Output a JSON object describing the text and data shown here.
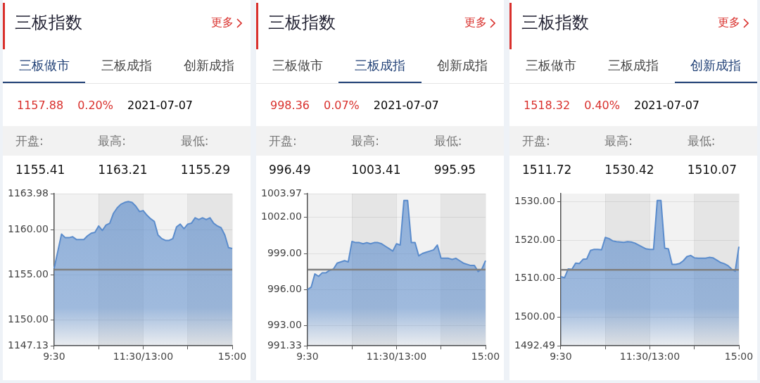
{
  "chart_data": [
    {
      "type": "area",
      "title": "三板指数",
      "annotations": [
        "更多",
        "三板做市",
        "三板成指",
        "创新成指",
        "1157.88",
        "0.20%",
        "2021-07-07",
        "开盘:",
        "最高:",
        "最低:",
        "1155.41",
        "1163.21",
        "1155.29"
      ],
      "categories": [
        "9:30",
        null,
        null,
        null,
        null,
        null,
        null,
        null,
        null,
        null,
        null,
        null,
        null,
        null,
        null,
        null,
        null,
        null,
        null,
        null,
        null,
        null,
        null,
        null,
        "11:30/13:00",
        null,
        null,
        null,
        null,
        null,
        null,
        null,
        null,
        null,
        null,
        null,
        null,
        null,
        null,
        null,
        null,
        null,
        null,
        null,
        null,
        null,
        null,
        null,
        "15:00"
      ],
      "ylim": [
        1147.13,
        1163.98
      ],
      "yticks": [
        1147.13,
        {
          "value": 1150,
          "label": "1150.00"
        },
        {
          "value": 1155,
          "label": "1155.00"
        },
        {
          "value": 1160,
          "label": "1160.00"
        },
        1163.98
      ],
      "grid": true,
      "ref_lines": [
        {
          "axis": "y",
          "value": 1155.57,
          "color": "#808080"
        }
      ],
      "series": [
        {
          "color": "#5b8ccc",
          "values": [
            1155.7,
            1157.6,
            1159.5,
            1159.1,
            1159.1,
            1159.2,
            1158.9,
            1158.9,
            1158.9,
            1159.3,
            1159.6,
            1159.7,
            1160.4,
            1159.9,
            1160.5,
            1160.7,
            1161.8,
            1162.4,
            1162.8,
            1163.0,
            1163.1,
            1163.0,
            1162.6,
            1162.0,
            1162.1,
            1161.6,
            1161.2,
            1160.9,
            1159.4,
            1159.0,
            1158.8,
            1158.8,
            1159.0,
            1160.3,
            1160.6,
            1160.1,
            1160.6,
            1160.7,
            1161.3,
            1161.1,
            1161.3,
            1161.1,
            1161.3,
            1160.7,
            1160.4,
            1160.2,
            1159.4,
            1158.0,
            1157.9
          ]
        }
      ]
    },
    {
      "type": "area",
      "title": "三板指数",
      "annotations": [
        "更多",
        "三板做市",
        "三板成指",
        "创新成指",
        "998.36",
        "0.07%",
        "2021-07-07",
        "开盘:",
        "最高:",
        "最低:",
        "996.49",
        "1003.41",
        "995.95"
      ],
      "categories": [
        "9:30",
        null,
        null,
        null,
        null,
        null,
        null,
        null,
        null,
        null,
        null,
        null,
        null,
        null,
        null,
        null,
        null,
        null,
        null,
        null,
        null,
        null,
        null,
        null,
        "11:30/13:00",
        null,
        null,
        null,
        null,
        null,
        null,
        null,
        null,
        null,
        null,
        null,
        null,
        null,
        null,
        null,
        null,
        null,
        null,
        null,
        null,
        null,
        null,
        null,
        "15:00"
      ],
      "ylim": [
        991.33,
        1003.97
      ],
      "yticks": [
        991.33,
        {
          "value": 993,
          "label": "993.00"
        },
        {
          "value": 996,
          "label": "996.00"
        },
        {
          "value": 999,
          "label": "999.00"
        },
        {
          "value": 1002,
          "label": "1002.00"
        },
        1003.97
      ],
      "grid": true,
      "ref_lines": [
        {
          "axis": "y",
          "value": 997.66,
          "color": "#808080"
        }
      ],
      "series": [
        {
          "color": "#5b8ccc",
          "values": [
            996.0,
            996.2,
            997.3,
            997.1,
            997.4,
            997.4,
            997.6,
            997.7,
            998.2,
            998.3,
            998.4,
            998.3,
            1000.0,
            999.9,
            999.9,
            999.8,
            999.9,
            999.8,
            999.9,
            999.9,
            999.8,
            999.6,
            999.4,
            999.2,
            999.8,
            999.7,
            1003.4,
            1003.4,
            999.9,
            999.9,
            998.8,
            999.0,
            999.1,
            999.2,
            999.3,
            999.7,
            998.6,
            998.6,
            998.6,
            998.5,
            998.6,
            998.4,
            998.2,
            998.1,
            998.0,
            998.0,
            997.5,
            997.7,
            998.4
          ]
        }
      ]
    },
    {
      "type": "area",
      "title": "三板指数",
      "annotations": [
        "更多",
        "三板做市",
        "三板成指",
        "创新成指",
        "1518.32",
        "0.40%",
        "2021-07-07",
        "开盘:",
        "最高:",
        "最低:",
        "1511.72",
        "1530.42",
        "1510.07"
      ],
      "categories": [
        "9:30",
        null,
        null,
        null,
        null,
        null,
        null,
        null,
        null,
        null,
        null,
        null,
        null,
        null,
        null,
        null,
        null,
        null,
        null,
        null,
        null,
        null,
        null,
        null,
        "11:30/13:00",
        null,
        null,
        null,
        null,
        null,
        null,
        null,
        null,
        null,
        null,
        null,
        null,
        null,
        null,
        null,
        null,
        null,
        null,
        null,
        null,
        null,
        null,
        null,
        "15:00"
      ],
      "ylim": [
        1492.49,
        1532.1
      ],
      "yticks": [
        1492.49,
        {
          "value": 1500,
          "label": "1500.00"
        },
        {
          "value": 1510,
          "label": "1510.00"
        },
        {
          "value": 1520,
          "label": "1520.00"
        },
        {
          "value": 1530,
          "label": "1530.00"
        }
      ],
      "grid": true,
      "ref_lines": [
        {
          "axis": "y",
          "value": 1512.27,
          "color": "#808080"
        }
      ],
      "series": [
        {
          "color": "#5b8ccc",
          "values": [
            1510.5,
            1510.2,
            1512.5,
            1512.4,
            1514.0,
            1513.9,
            1515.0,
            1515.1,
            1517.3,
            1517.6,
            1517.6,
            1517.5,
            1520.7,
            1520.4,
            1519.8,
            1519.6,
            1519.5,
            1519.4,
            1519.6,
            1519.5,
            1519.2,
            1518.7,
            1518.2,
            1517.7,
            1517.6,
            1517.6,
            1530.3,
            1530.3,
            1517.9,
            1517.7,
            1513.7,
            1513.7,
            1513.9,
            1514.6,
            1515.7,
            1516.0,
            1515.4,
            1515.3,
            1515.3,
            1515.3,
            1515.5,
            1515.4,
            1514.8,
            1514.2,
            1513.9,
            1513.4,
            1512.5,
            1511.9,
            1518.3
          ]
        }
      ]
    }
  ]
}
